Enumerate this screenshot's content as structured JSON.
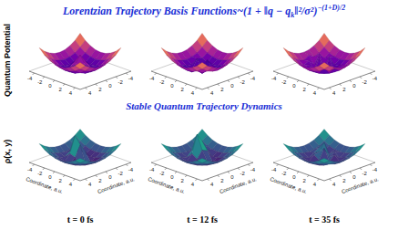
{
  "title": "Lorentzian Trajectory Basis Functions~",
  "formula": {
    "base": "(1 + ‖q − q",
    "sub": "k",
    "rest": "‖²/σ²)",
    "exponent": "−(1+D)/2"
  },
  "subtitle": "Stable Quantum Trajectory Dynamics",
  "row_labels": [
    "Quantum Potential",
    "ρ(x, y)"
  ],
  "column_labels": [
    "t = 0 fs",
    "t = 12 fs",
    "t = 35 fs"
  ],
  "chart_data": [
    {
      "type": "surface",
      "xlim": [
        -5,
        5
      ],
      "ylim": [
        -5,
        5
      ],
      "zlim": [
        0,
        10
      ],
      "xticks": [
        -4,
        -2,
        0,
        2,
        4
      ],
      "yticks": [
        -4,
        -2,
        0,
        2,
        4
      ],
      "x": [
        -4,
        -3,
        -2,
        -1,
        0,
        1,
        2,
        3,
        4
      ],
      "y": [
        -4,
        -3,
        -2,
        -1,
        0,
        1,
        2,
        3,
        4
      ],
      "z": [
        [
          8,
          6.2,
          5,
          4.2,
          4,
          4.2,
          5,
          6.2,
          8
        ],
        [
          6.2,
          4.5,
          3.2,
          2.5,
          2.2,
          2.5,
          3.2,
          4.5,
          6.2
        ],
        [
          5,
          3.2,
          2,
          1.2,
          1,
          1.2,
          2,
          3.2,
          5
        ],
        [
          4.2,
          2.5,
          1.2,
          1.5,
          2.8,
          1.5,
          1.2,
          2.5,
          4.2
        ],
        [
          4,
          2.2,
          1,
          2.8,
          5.5,
          2.8,
          1,
          2.2,
          4
        ],
        [
          4.2,
          2.5,
          1.2,
          1.5,
          2.8,
          1.5,
          1.2,
          2.5,
          4.2
        ],
        [
          5,
          3.2,
          2,
          1.2,
          1,
          1.2,
          2,
          3.2,
          5
        ],
        [
          6.2,
          4.5,
          3.2,
          2.5,
          2.2,
          2.5,
          3.2,
          4.5,
          6.2
        ],
        [
          8,
          6.2,
          5,
          4.2,
          4,
          4.2,
          5,
          6.2,
          8
        ]
      ]
    },
    {
      "type": "surface",
      "xlim": [
        -5,
        5
      ],
      "ylim": [
        -5,
        5
      ],
      "zlim": [
        0,
        10
      ],
      "xticks": [
        -4,
        -2,
        0,
        2,
        4
      ],
      "yticks": [
        -4,
        -2,
        0,
        2,
        4
      ],
      "x": [
        -4,
        -3,
        -2,
        -1,
        0,
        1,
        2,
        3,
        4
      ],
      "y": [
        -4,
        -3,
        -2,
        -1,
        0,
        1,
        2,
        3,
        4
      ],
      "z": [
        [
          8,
          6.2,
          5,
          4.2,
          4,
          4.2,
          5,
          6.2,
          8
        ],
        [
          6.2,
          4.5,
          3.2,
          2.5,
          2.2,
          2.5,
          3.2,
          4.5,
          6.2
        ],
        [
          5,
          3.2,
          2,
          1.2,
          1,
          1.2,
          2,
          3.2,
          5
        ],
        [
          4.2,
          2.5,
          2.4,
          0.5,
          3.2,
          0.5,
          1.2,
          2.5,
          4.2
        ],
        [
          4,
          2.2,
          1,
          3.6,
          0,
          1,
          3,
          2.2,
          4
        ],
        [
          4.2,
          2.5,
          1.2,
          0.5,
          2.6,
          0.5,
          3.4,
          2.5,
          4.2
        ],
        [
          5,
          3.2,
          2,
          1.2,
          1,
          2.2,
          2,
          3.2,
          5
        ],
        [
          6.2,
          4.5,
          3.2,
          2.5,
          2.2,
          2.5,
          3.2,
          4.5,
          6.2
        ],
        [
          8,
          6.2,
          5,
          4.2,
          4,
          4.2,
          5,
          6.2,
          8
        ]
      ]
    },
    {
      "type": "surface",
      "xlim": [
        -5,
        5
      ],
      "ylim": [
        -5,
        5
      ],
      "zlim": [
        0,
        10
      ],
      "xticks": [
        -4,
        -2,
        0,
        2,
        4
      ],
      "yticks": [
        -4,
        -2,
        0,
        2,
        4
      ],
      "x": [
        -4,
        -3,
        -2,
        -1,
        0,
        1,
        2,
        3,
        4
      ],
      "y": [
        -4,
        -3,
        -2,
        -1,
        0,
        1,
        2,
        3,
        4
      ],
      "z": [
        [
          8,
          6.2,
          5,
          4.2,
          4,
          4.2,
          5,
          6.2,
          8
        ],
        [
          6.2,
          4.5,
          3.2,
          2.5,
          2.2,
          2.5,
          3.2,
          4.5,
          6.2
        ],
        [
          5,
          3.2,
          2,
          3,
          1,
          1.2,
          2,
          3.2,
          5
        ],
        [
          4.2,
          2.5,
          4,
          0.5,
          3.8,
          0.5,
          2.8,
          2.5,
          4.2
        ],
        [
          4,
          3.6,
          1,
          4.4,
          0,
          3.5,
          1,
          2.2,
          4
        ],
        [
          4.2,
          2.5,
          3,
          0.5,
          4.6,
          0.5,
          1.2,
          3.4,
          4.2
        ],
        [
          5,
          3.2,
          2,
          2.8,
          1,
          1.2,
          3.6,
          3.2,
          5
        ],
        [
          6.2,
          4.5,
          3.2,
          2.5,
          2.2,
          2.5,
          3.2,
          4.5,
          6.2
        ],
        [
          8,
          6.2,
          5,
          4.2,
          4,
          4.2,
          5,
          6.2,
          8
        ]
      ]
    },
    {
      "type": "surface",
      "xlabel": "Coordinate, a.u.",
      "ylabel": "Coordinate, a.u.",
      "xlim": [
        -5,
        5
      ],
      "ylim": [
        -5,
        5
      ],
      "zlim": [
        0,
        10
      ],
      "xticks": [
        -4,
        -2,
        0,
        2,
        4
      ],
      "yticks": [
        -4,
        -2,
        0,
        2,
        4
      ],
      "x": [
        -4,
        -3,
        -2,
        -1,
        0,
        1,
        2,
        3,
        4
      ],
      "y": [
        -4,
        -3,
        -2,
        -1,
        0,
        1,
        2,
        3,
        4
      ],
      "z": [
        [
          6.4,
          5,
          4,
          3.4,
          3.2,
          3.4,
          4,
          5,
          6.4
        ],
        [
          5,
          3.6,
          2.6,
          2,
          1.8,
          2,
          2.6,
          3.6,
          5
        ],
        [
          4,
          2.6,
          1.6,
          1,
          0.8,
          1,
          1.6,
          2.6,
          4
        ],
        [
          3.4,
          2,
          1.6,
          3.5,
          3,
          0.4,
          1,
          2,
          3.4
        ],
        [
          3.2,
          1.8,
          2.5,
          8.5,
          6,
          0.6,
          0.8,
          1.8,
          3.2
        ],
        [
          3.4,
          2,
          1.4,
          3,
          2.4,
          0.4,
          1,
          2,
          3.4
        ],
        [
          4,
          2.6,
          1.6,
          1,
          0.8,
          1,
          1.6,
          2.6,
          4
        ],
        [
          5,
          3.6,
          2.6,
          2,
          1.8,
          2,
          2.6,
          3.6,
          5
        ],
        [
          6.4,
          5,
          4,
          3.4,
          3.2,
          3.4,
          4,
          5,
          6.4
        ]
      ]
    },
    {
      "type": "surface",
      "xlabel": "Coordinate, a.u.",
      "ylabel": "Coordinate, a.u.",
      "xlim": [
        -5,
        5
      ],
      "ylim": [
        -5,
        5
      ],
      "zlim": [
        0,
        10
      ],
      "xticks": [
        -4,
        -2,
        0,
        2,
        4
      ],
      "yticks": [
        -4,
        -2,
        0,
        2,
        4
      ],
      "x": [
        -4,
        -3,
        -2,
        -1,
        0,
        1,
        2,
        3,
        4
      ],
      "y": [
        -4,
        -3,
        -2,
        -1,
        0,
        1,
        2,
        3,
        4
      ],
      "z": [
        [
          6.4,
          5,
          4,
          3.4,
          3.2,
          3.4,
          4,
          5,
          6.4
        ],
        [
          5,
          3.6,
          2.6,
          2,
          1.8,
          2,
          2.6,
          3.6,
          5
        ],
        [
          4,
          2.6,
          1.6,
          2.4,
          0.8,
          1,
          1.6,
          2.6,
          4
        ],
        [
          3.4,
          2,
          2.6,
          6,
          3.4,
          0.4,
          1,
          2,
          3.4
        ],
        [
          3.2,
          1.8,
          3,
          9,
          4.2,
          1.2,
          0.8,
          1.8,
          3.2
        ],
        [
          3.4,
          2,
          1.2,
          3,
          1.8,
          0.4,
          1,
          2,
          3.4
        ],
        [
          4,
          2.6,
          1.6,
          1,
          0.8,
          1,
          1.6,
          2.6,
          4
        ],
        [
          5,
          3.6,
          2.6,
          2,
          1.8,
          2,
          2.6,
          3.6,
          5
        ],
        [
          6.4,
          5,
          4,
          3.4,
          3.2,
          3.4,
          4,
          5,
          6.4
        ]
      ]
    },
    {
      "type": "surface",
      "xlabel": "Coordinate, a.u.",
      "ylabel": "Coordinate, a.u.",
      "xlim": [
        -5,
        5
      ],
      "ylim": [
        -5,
        5
      ],
      "zlim": [
        0,
        10
      ],
      "xticks": [
        -4,
        -2,
        0,
        2,
        4
      ],
      "yticks": [
        -4,
        -2,
        0,
        2,
        4
      ],
      "x": [
        -4,
        -3,
        -2,
        -1,
        0,
        1,
        2,
        3,
        4
      ],
      "y": [
        -4,
        -3,
        -2,
        -1,
        0,
        1,
        2,
        3,
        4
      ],
      "z": [
        [
          6.4,
          5,
          4,
          3.4,
          3.2,
          3.4,
          4,
          5,
          6.4
        ],
        [
          5,
          3.6,
          2.6,
          2,
          1.8,
          2,
          2.6,
          3.6,
          5
        ],
        [
          4,
          2.6,
          1.6,
          1,
          2.4,
          1,
          1.6,
          2.6,
          4
        ],
        [
          3.4,
          2,
          3.2,
          5.5,
          1.2,
          2.6,
          1,
          2,
          3.4
        ],
        [
          3.2,
          1.8,
          2,
          3,
          4.8,
          1,
          0.8,
          1.8,
          3.2
        ],
        [
          3.4,
          2,
          1,
          2.6,
          1.4,
          0.4,
          2.2,
          2,
          3.4
        ],
        [
          4,
          2.6,
          1.6,
          1,
          0.8,
          1,
          1.6,
          2.6,
          4
        ],
        [
          5,
          3.6,
          2.6,
          2,
          1.8,
          2,
          2.6,
          3.6,
          5
        ],
        [
          6.4,
          5,
          4,
          3.4,
          3.2,
          3.4,
          4,
          5,
          6.4
        ]
      ]
    }
  ]
}
